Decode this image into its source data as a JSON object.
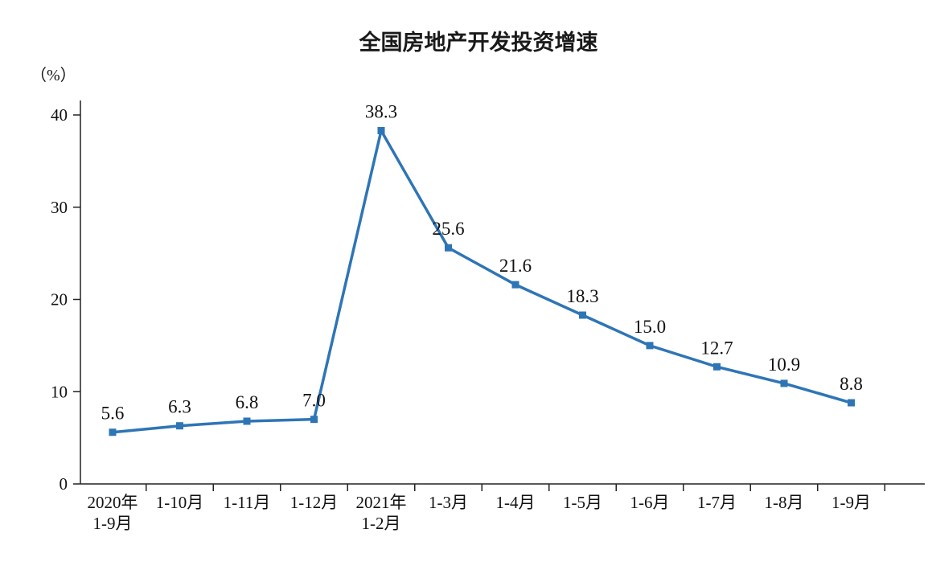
{
  "chart": {
    "title": "全国房地产开发投资增速",
    "y_unit_label": "（%）"
  },
  "chart_data": {
    "type": "line",
    "title": "全国房地产开发投资增速",
    "xlabel": "",
    "ylabel": "（%）",
    "ylim": [
      0,
      40
    ],
    "yticks": [
      0,
      10,
      20,
      30,
      40
    ],
    "grid": false,
    "legend_position": "none",
    "line_color": "#2E75B6",
    "marker": "square",
    "categories": [
      "2020年\n1-9月",
      "1-10月",
      "1-11月",
      "1-12月",
      "2021年\n1-2月",
      "1-3月",
      "1-4月",
      "1-5月",
      "1-6月",
      "1-7月",
      "1-8月",
      "1-9月"
    ],
    "values": [
      5.6,
      6.3,
      6.8,
      7.0,
      38.3,
      25.6,
      21.6,
      18.3,
      15.0,
      12.7,
      10.9,
      8.8
    ],
    "data_labels": [
      "5.6",
      "6.3",
      "6.8",
      "7.0",
      "38.3",
      "25.6",
      "21.6",
      "18.3",
      "15.0",
      "12.7",
      "10.9",
      "8.8"
    ]
  }
}
